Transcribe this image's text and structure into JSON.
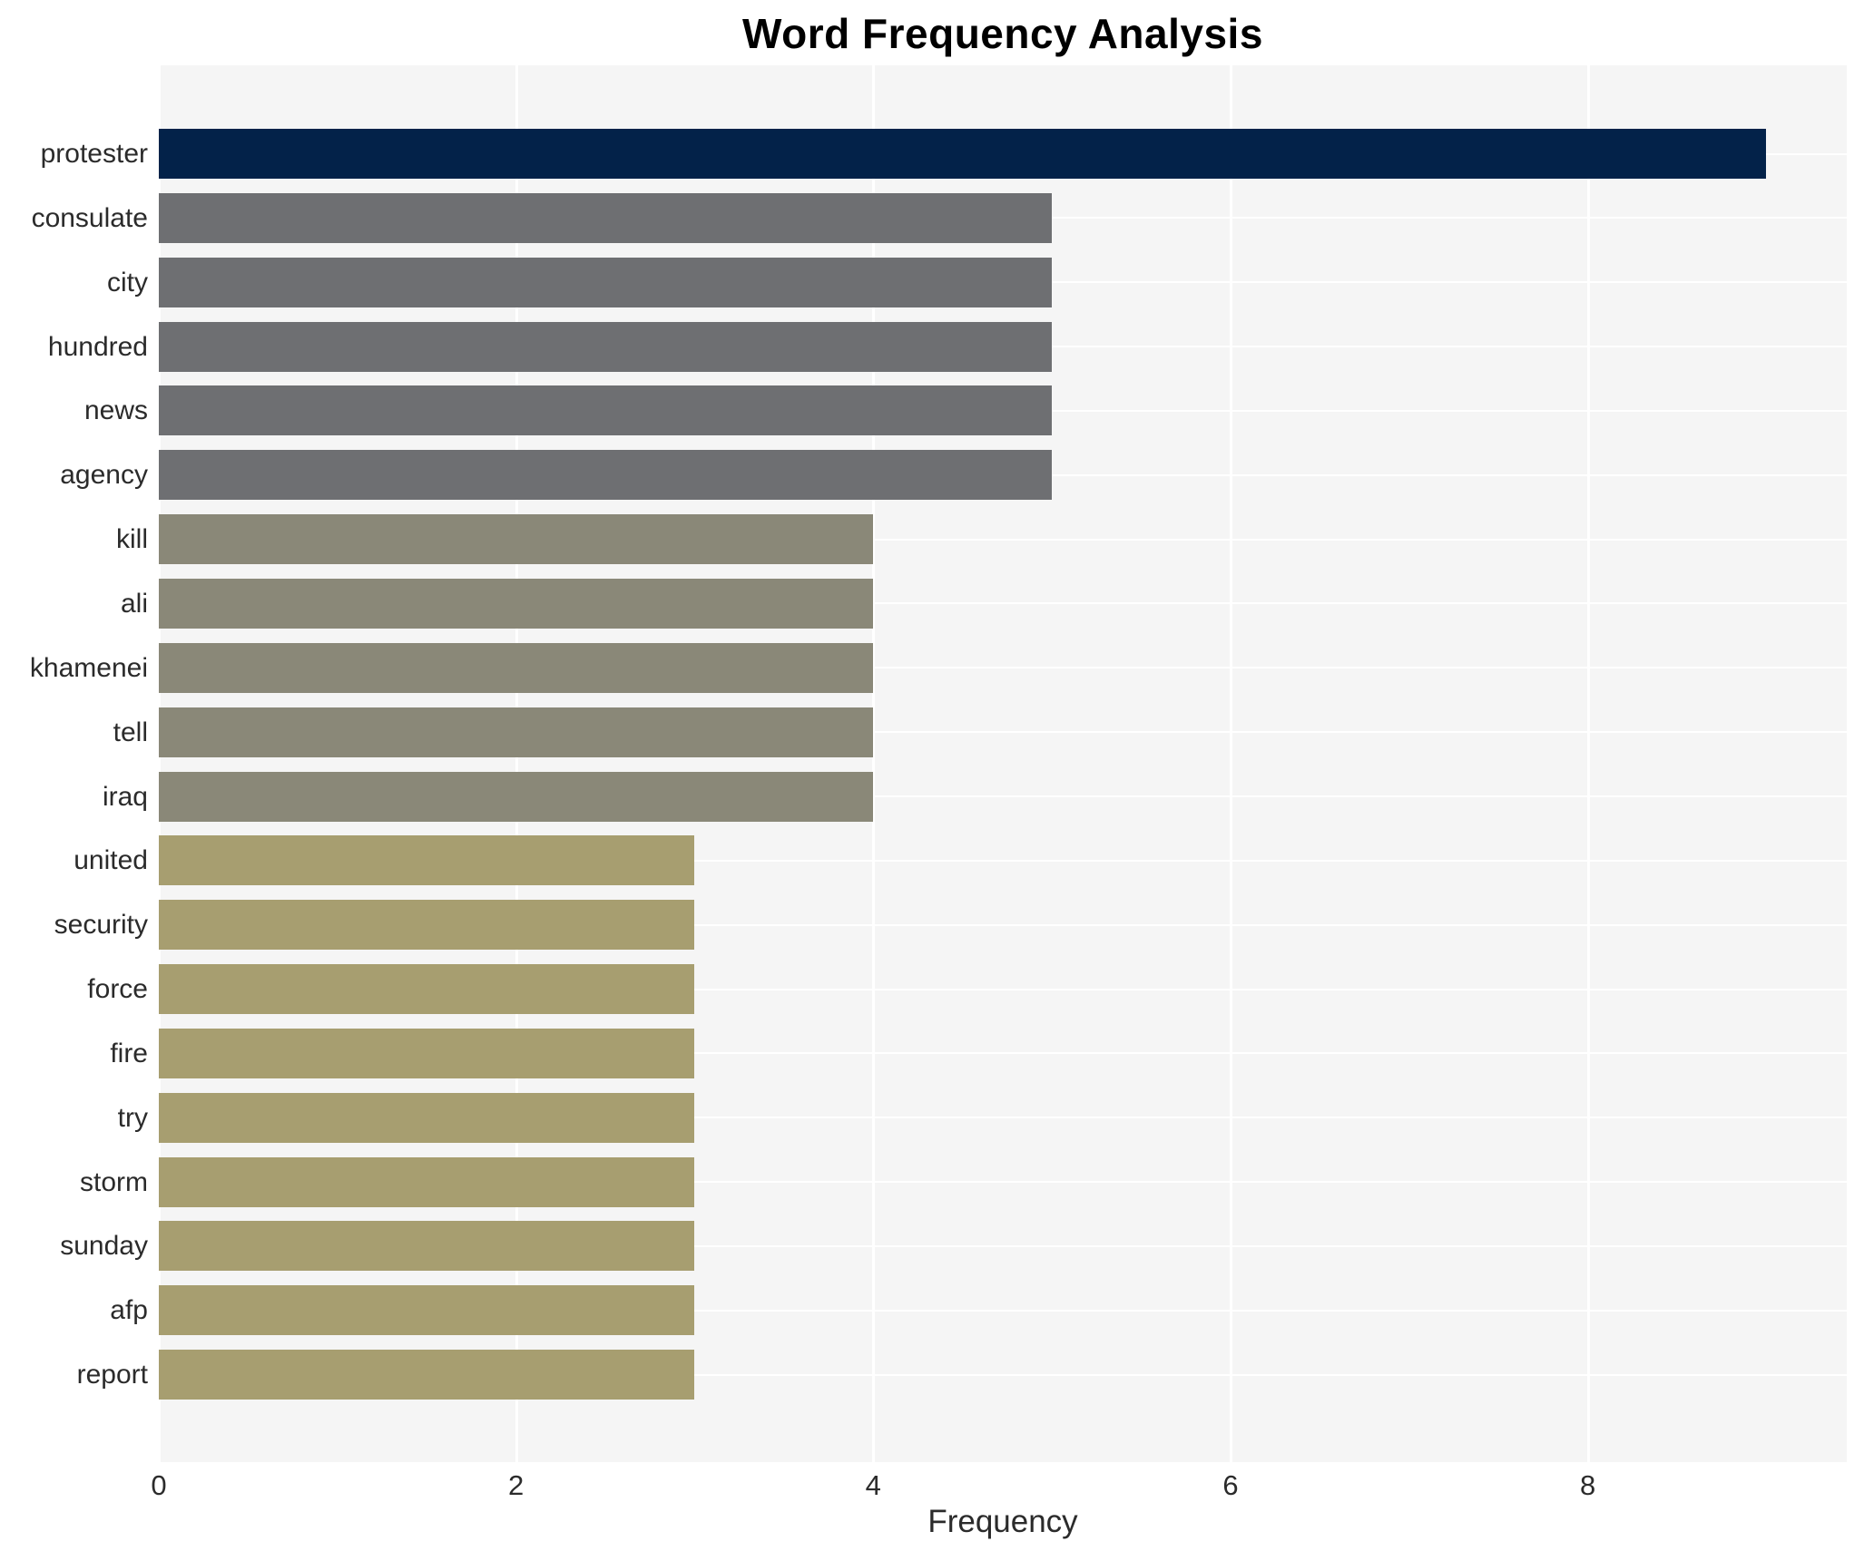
{
  "chart_data": {
    "type": "bar",
    "orientation": "horizontal",
    "title": "Word Frequency Analysis",
    "xlabel": "Frequency",
    "ylabel": "",
    "categories": [
      "protester",
      "consulate",
      "city",
      "hundred",
      "news",
      "agency",
      "kill",
      "ali",
      "khamenei",
      "tell",
      "iraq",
      "united",
      "security",
      "force",
      "fire",
      "try",
      "storm",
      "sunday",
      "afp",
      "report"
    ],
    "values": [
      9,
      5,
      5,
      5,
      5,
      5,
      4,
      4,
      4,
      4,
      4,
      3,
      3,
      3,
      3,
      3,
      3,
      3,
      3,
      3
    ],
    "bar_colors": [
      "#032249",
      "#6e6f72",
      "#6e6f72",
      "#6e6f72",
      "#6e6f72",
      "#6e6f72",
      "#8a8878",
      "#8a8878",
      "#8a8878",
      "#8a8878",
      "#8a8878",
      "#a79e70",
      "#a79e70",
      "#a79e70",
      "#a79e70",
      "#a79e70",
      "#a79e70",
      "#a79e70",
      "#a79e70",
      "#a79e70"
    ],
    "x_ticks": [
      0,
      2,
      4,
      6,
      8
    ],
    "xlim": [
      0,
      9.45
    ],
    "grid": true,
    "legend": "none",
    "plot_background": "#f5f5f5",
    "grid_color": "#ffffff",
    "text_color": "#2b2b2b",
    "title_color": "#000000"
  }
}
